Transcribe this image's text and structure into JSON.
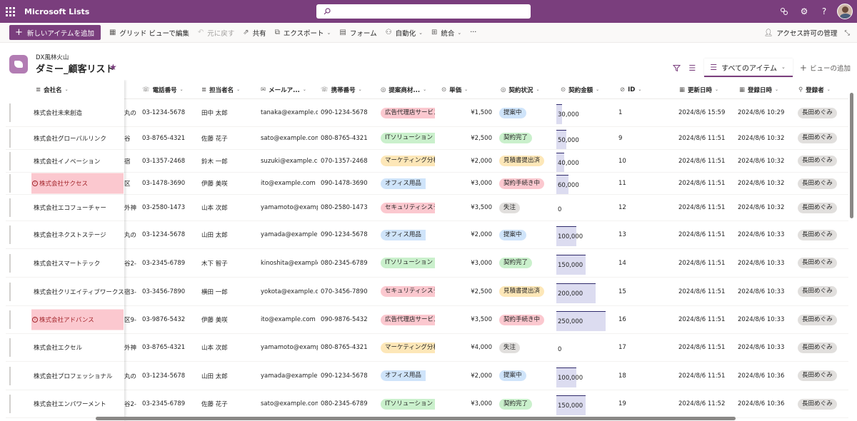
{
  "suite": {
    "app_title": "Microsoft Lists",
    "search_placeholder": ""
  },
  "commands": {
    "new_item": "新しいアイテムを追加",
    "grid_edit": "グリッド ビューで編集",
    "undo": "元に戻す",
    "share": "共有",
    "export": "エクスポート",
    "forms": "フォーム",
    "automate": "自動化",
    "integrate": "統合",
    "more": "···",
    "access": "アクセス許可の管理"
  },
  "list": {
    "site_name": "DX風林火山",
    "title": "ダミー_顧客リスト",
    "current_view": "すべてのアイテム",
    "add_view": "ビューの追加"
  },
  "columns": {
    "company": "会社名",
    "phone": "電話番号",
    "contact": "担当者名",
    "email": "メールア...",
    "mobile": "携帯番号",
    "product": "提案商材...",
    "price": "単価",
    "status": "契約状況",
    "amount": "契約金額",
    "id": "ID",
    "modified": "更新日時",
    "created": "登録日時",
    "author": "登録者"
  },
  "status_colors": {
    "提案中": "#cfe4fa",
    "契約完了": "#caf0cc",
    "見積書提出済": "#fde7b8",
    "契約手続き中": "#fbc8cf",
    "失注": "#e1dfdd"
  },
  "product_colors": {
    "広告代理店サービス": "#fbc8cf",
    "ITソリューション": "#caf0cc",
    "マーケティング分析": "#fde7b8",
    "オフィス用品": "#cfe4fa",
    "セキュリティシステ": "#fbc8cf"
  },
  "amount_max": 250000,
  "rows": [
    {
      "company": "株式会社未来創造",
      "addr": "丸の",
      "phone": "03-1234-5678",
      "contact": "田中 太郎",
      "email": "tanaka@example.c...",
      "mobile": "090-1234-5678",
      "product": "広告代理店サービス",
      "price": "¥1,500",
      "status": "提案中",
      "amount": 30000,
      "amount_label": "30,000",
      "id": "1",
      "modified": "2024/8/6 15:59",
      "created": "2024/8/6 10:29",
      "author": "長田めぐみ",
      "error": false
    },
    {
      "company": "株式会社グローバルリンク",
      "addr": "谷",
      "phone": "03-8765-4321",
      "contact": "佐藤 花子",
      "email": "sato@example.com",
      "mobile": "080-8765-4321",
      "product": "ITソリューション",
      "price": "¥2,500",
      "status": "契約完了",
      "amount": 50000,
      "amount_label": "50,000",
      "id": "9",
      "modified": "2024/8/6 11:51",
      "created": "2024/8/6 10:32",
      "author": "長田めぐみ",
      "error": false
    },
    {
      "company": "株式会社イノベーション",
      "addr": "宿",
      "phone": "03-1357-2468",
      "contact": "鈴木 一郎",
      "email": "suzuki@example.co...",
      "mobile": "070-1357-2468",
      "product": "マーケティング分析",
      "price": "¥2,000",
      "status": "見積書提出済",
      "amount": 40000,
      "amount_label": "40,000",
      "id": "10",
      "modified": "2024/8/6 11:51",
      "created": "2024/8/6 10:32",
      "author": "長田めぐみ",
      "error": false
    },
    {
      "company": "株式会社サクセス",
      "addr": "区",
      "phone": "03-1478-3690",
      "contact": "伊藤 美咲",
      "email": "ito@example.com",
      "mobile": "090-1478-3690",
      "product": "オフィス用品",
      "price": "¥3,000",
      "status": "契約手続き中",
      "amount": 60000,
      "amount_label": "60,000",
      "id": "11",
      "modified": "2024/8/6 11:51",
      "created": "2024/8/6 10:32",
      "author": "長田めぐみ",
      "error": true
    },
    {
      "company": "株式会社エコフューチャー",
      "addr": "外神",
      "phone": "03-2580-1473",
      "contact": "山本 次郎",
      "email": "yamamoto@examp...",
      "mobile": "080-2580-1473",
      "product": "セキュリティシステ",
      "price": "¥3,500",
      "status": "失注",
      "amount": 0,
      "amount_label": "0",
      "id": "12",
      "modified": "2024/8/6 11:51",
      "created": "2024/8/6 10:32",
      "author": "長田めぐみ",
      "error": false
    },
    {
      "company": "株式会社ネクストステージ",
      "addr": "丸の",
      "phone": "03-1234-5678",
      "contact": "山田 太郎",
      "email": "yamada@example....",
      "mobile": "090-1234-5678",
      "product": "オフィス用品",
      "price": "¥2,000",
      "status": "提案中",
      "amount": 100000,
      "amount_label": "100,000",
      "id": "13",
      "modified": "2024/8/6 11:51",
      "created": "2024/8/6 10:33",
      "author": "長田めぐみ",
      "error": false
    },
    {
      "company": "株式会社スマートテック",
      "addr": "谷2-",
      "phone": "03-2345-6789",
      "contact": "木下 智子",
      "email": "kinoshita@example...",
      "mobile": "080-2345-6789",
      "product": "ITソリューション",
      "price": "¥3,000",
      "status": "契約完了",
      "amount": 150000,
      "amount_label": "150,000",
      "id": "14",
      "modified": "2024/8/6 11:51",
      "created": "2024/8/6 10:33",
      "author": "長田めぐみ",
      "error": false
    },
    {
      "company": "株式会社クリエイティブワークス",
      "addr": "宿3-",
      "phone": "03-3456-7890",
      "contact": "横田 一郎",
      "email": "yokota@example.co...",
      "mobile": "070-3456-7890",
      "product": "セキュリティシステ",
      "price": "¥2,500",
      "status": "見積書提出済",
      "amount": 200000,
      "amount_label": "200,000",
      "id": "15",
      "modified": "2024/8/6 11:51",
      "created": "2024/8/6 10:33",
      "author": "長田めぐみ",
      "error": false
    },
    {
      "company": "株式会社アドバンス",
      "addr": "区9-",
      "phone": "03-9876-5432",
      "contact": "伊藤 美咲",
      "email": "ito@example.com",
      "mobile": "090-9876-5432",
      "product": "広告代理店サービス",
      "price": "¥3,500",
      "status": "契約手続き中",
      "amount": 250000,
      "amount_label": "250,000",
      "id": "16",
      "modified": "2024/8/6 11:51",
      "created": "2024/8/6 10:33",
      "author": "長田めぐみ",
      "error": true
    },
    {
      "company": "株式会社エクセル",
      "addr": "外神",
      "phone": "03-8765-4321",
      "contact": "山本 次郎",
      "email": "yamamoto@examp...",
      "mobile": "080-8765-4321",
      "product": "マーケティング分析",
      "price": "¥4,000",
      "status": "失注",
      "amount": 0,
      "amount_label": "0",
      "id": "17",
      "modified": "2024/8/6 11:51",
      "created": "2024/8/6 10:33",
      "author": "長田めぐみ",
      "error": false
    },
    {
      "company": "株式会社プロフェッショナル",
      "addr": "丸の",
      "phone": "03-1234-5678",
      "contact": "山田 太郎",
      "email": "yamada@example....",
      "mobile": "090-1234-5678",
      "product": "オフィス用品",
      "price": "¥2,000",
      "status": "提案中",
      "amount": 100000,
      "amount_label": "100,000",
      "id": "18",
      "modified": "2024/8/6 11:51",
      "created": "2024/8/6 10:36",
      "author": "長田めぐみ",
      "error": false
    },
    {
      "company": "株式会社エンパワーメント",
      "addr": "谷2-",
      "phone": "03-2345-6789",
      "contact": "佐藤 花子",
      "email": "sato@example.com",
      "mobile": "080-2345-6789",
      "product": "ITソリューション",
      "price": "¥3,000",
      "status": "契約完了",
      "amount": 150000,
      "amount_label": "150,000",
      "id": "19",
      "modified": "2024/8/6 11:52",
      "created": "2024/8/6 10:36",
      "author": "長田めぐみ",
      "error": false
    }
  ]
}
